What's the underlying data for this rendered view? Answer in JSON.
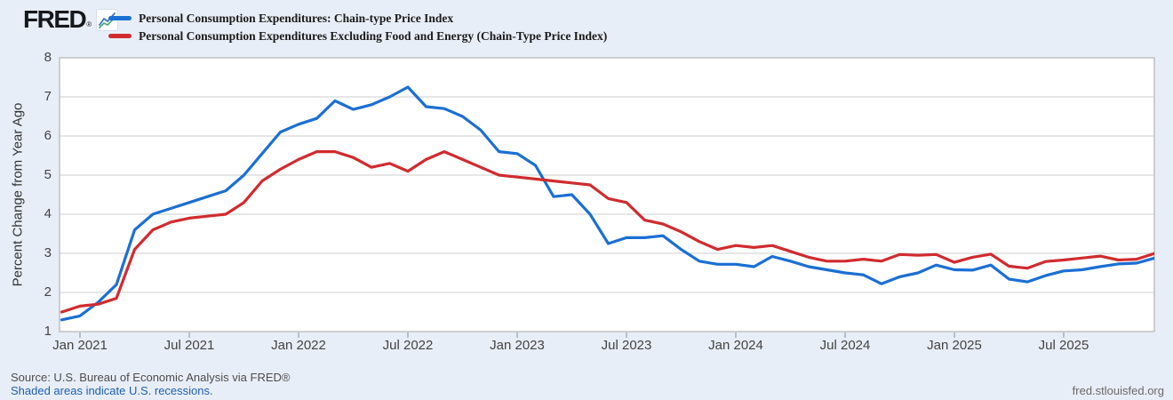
{
  "header": {
    "logo_text": "FRED",
    "registered_mark": "®",
    "legend": [
      {
        "label": "Personal Consumption Expenditures: Chain-type Price Index",
        "color": "#1a6fd4"
      },
      {
        "label": "Personal Consumption Expenditures Excluding Food and Energy (Chain-Type Price Index)",
        "color": "#d12b2e"
      }
    ]
  },
  "chart_data": {
    "type": "line",
    "title": "",
    "xlabel": "",
    "ylabel": "Percent Change from Year Ago",
    "ylim": [
      1,
      8
    ],
    "y_ticks": [
      1,
      2,
      3,
      4,
      5,
      6,
      7,
      8
    ],
    "grid": "horizontal",
    "legend_position": "top-left",
    "freq": "monthly",
    "x_start": "2020-12",
    "x_end": "2025-12",
    "x_tick_labels": [
      "Jan 2021",
      "Jul 2021",
      "Jan 2022",
      "Jul 2022",
      "Jan 2023",
      "Jul 2023",
      "Jan 2024",
      "Jul 2024",
      "Jan 2025",
      "Jul 2025"
    ],
    "x_tick_month_index": [
      1,
      7,
      13,
      19,
      25,
      31,
      37,
      43,
      49,
      55
    ],
    "series": [
      {
        "name": "Personal Consumption Expenditures: Chain-type Price Index",
        "color": "#1a6fd4",
        "values": [
          1.3,
          1.4,
          1.75,
          2.2,
          3.6,
          4.0,
          4.15,
          4.3,
          4.45,
          4.6,
          5.0,
          5.55,
          6.1,
          6.3,
          6.45,
          6.9,
          6.68,
          6.8,
          7.0,
          7.25,
          6.75,
          6.7,
          6.5,
          6.15,
          5.6,
          5.55,
          5.25,
          4.45,
          4.5,
          4.0,
          3.25,
          3.4,
          3.4,
          3.45,
          3.1,
          2.8,
          2.72,
          2.72,
          2.66,
          2.92,
          2.8,
          2.66,
          2.58,
          2.5,
          2.45,
          2.22,
          2.4,
          2.5,
          2.7,
          2.58,
          2.57,
          2.7,
          2.34,
          2.27,
          2.43,
          2.55,
          2.58,
          2.66,
          2.73,
          2.75,
          2.88
        ]
      },
      {
        "name": "Personal Consumption Expenditures Excluding Food and Energy (Chain-Type Price Index)",
        "color": "#d12b2e",
        "values": [
          1.5,
          1.65,
          1.7,
          1.85,
          3.1,
          3.6,
          3.8,
          3.9,
          3.95,
          4.0,
          4.3,
          4.85,
          5.15,
          5.4,
          5.6,
          5.6,
          5.45,
          5.2,
          5.3,
          5.1,
          5.4,
          5.6,
          5.4,
          5.2,
          5.0,
          4.95,
          4.9,
          4.85,
          4.8,
          4.75,
          4.4,
          4.3,
          3.85,
          3.75,
          3.55,
          3.3,
          3.1,
          3.2,
          3.15,
          3.2,
          3.05,
          2.9,
          2.8,
          2.8,
          2.85,
          2.8,
          2.97,
          2.95,
          2.97,
          2.77,
          2.9,
          2.98,
          2.67,
          2.62,
          2.79,
          2.83,
          2.88,
          2.93,
          2.83,
          2.85,
          3.0
        ]
      }
    ],
    "colors": {
      "plot_background": "#ffffff",
      "page_background": "#e8eef7",
      "gridline": "#cccccc",
      "plot_border": "#a6a6a6",
      "tick_mark": "#b3bfce",
      "tick_label": "#434343"
    }
  },
  "footer": {
    "source": "Source: U.S. Bureau of Economic Analysis via FRED®",
    "recession_note": "Shaded areas indicate U.S. recessions.",
    "site": "fred.stlouisfed.org"
  }
}
